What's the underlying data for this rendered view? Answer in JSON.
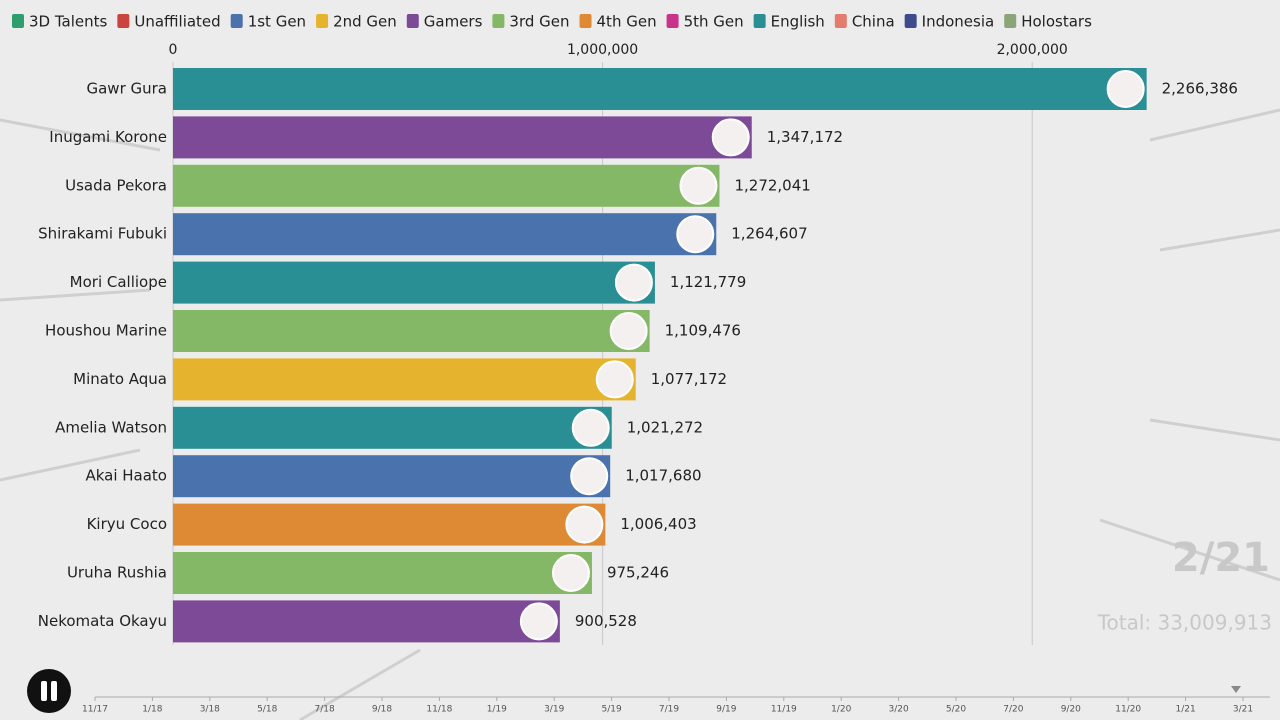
{
  "chart_data": {
    "type": "bar",
    "orientation": "horizontal",
    "legend": [
      {
        "name": "3D Talents",
        "color": "#2e9e6e"
      },
      {
        "name": "Unaffiliated",
        "color": "#c9453e"
      },
      {
        "name": "1st Gen",
        "color": "#4a72ad"
      },
      {
        "name": "2nd Gen",
        "color": "#e6b32e"
      },
      {
        "name": "Gamers",
        "color": "#7d4a98"
      },
      {
        "name": "3rd Gen",
        "color": "#85b866"
      },
      {
        "name": "4th Gen",
        "color": "#de8a34"
      },
      {
        "name": "5th Gen",
        "color": "#c9338c"
      },
      {
        "name": "English",
        "color": "#2a8f94"
      },
      {
        "name": "China",
        "color": "#e37b6e"
      },
      {
        "name": "Indonesia",
        "color": "#3e4a8e"
      },
      {
        "name": "Holostars",
        "color": "#8aa678"
      }
    ],
    "categories": [
      "Gawr Gura",
      "Inugami Korone",
      "Usada Pekora",
      "Shirakami Fubuki",
      "Mori Calliope",
      "Houshou Marine",
      "Minato Aqua",
      "Amelia Watson",
      "Akai Haato",
      "Kiryu Coco",
      "Uruha Rushia",
      "Nekomata Okayu"
    ],
    "values": [
      2266386,
      1347172,
      1272041,
      1264607,
      1121779,
      1109476,
      1077172,
      1021272,
      1017680,
      1006403,
      975246,
      900528
    ],
    "value_labels": [
      "2,266,386",
      "1,347,172",
      "1,272,041",
      "1,264,607",
      "1,121,779",
      "1,109,476",
      "1,077,172",
      "1,021,272",
      "1,017,680",
      "1,006,403",
      "975,246",
      "900,528"
    ],
    "colors": [
      "#2a8f94",
      "#7d4a98",
      "#85b866",
      "#4a72ad",
      "#2a8f94",
      "#85b866",
      "#e6b32e",
      "#2a8f94",
      "#4a72ad",
      "#de8a34",
      "#85b866",
      "#7d4a98"
    ],
    "xlim": [
      0,
      2500000
    ],
    "xticks": [
      0,
      {
        "value": 1000000,
        "label": "1,000,000"
      },
      {
        "value": 2000000,
        "label": "2,000,000"
      }
    ],
    "grid": true,
    "date": "2/21",
    "total": "Total: 33,009,913",
    "timeline": [
      "11/17",
      "1/18",
      "3/18",
      "5/18",
      "7/18",
      "9/18",
      "11/18",
      "1/19",
      "3/19",
      "5/19",
      "7/19",
      "9/19",
      "11/19",
      "1/20",
      "3/20",
      "5/20",
      "7/20",
      "9/20",
      "11/20",
      "1/21",
      "3/21"
    ]
  }
}
